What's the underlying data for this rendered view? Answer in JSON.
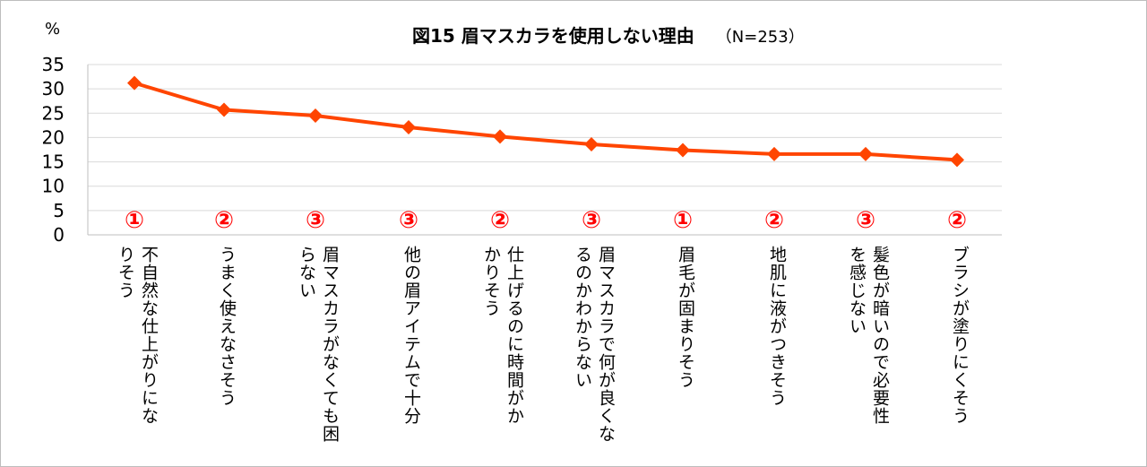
{
  "chart_data": {
    "type": "line",
    "title": "図15 眉マスカラを使用しない理由",
    "n_label": "（N=253）",
    "ylabel": "%",
    "ylim": [
      0,
      35
    ],
    "yticks": [
      0,
      5,
      10,
      15,
      20,
      25,
      30,
      35
    ],
    "grid": true,
    "categories": [
      [
        "不自然な仕上がりにな",
        "りそう"
      ],
      [
        "うまく使えなさそう"
      ],
      [
        "眉マスカラがなくても困",
        "らない"
      ],
      [
        "他の眉アイテムで十分"
      ],
      [
        "仕上げるのに時間がか",
        "かりそう"
      ],
      [
        "眉マスカラで何が良くな",
        "るのかわからない"
      ],
      [
        "眉毛が固まりそう"
      ],
      [
        "地肌に液がつきそう"
      ],
      [
        "髪色が暗いので必要性",
        "を感じない"
      ],
      [
        "ブラシが塗りにくそう"
      ]
    ],
    "values": [
      31.2,
      25.7,
      24.5,
      22.1,
      20.2,
      18.6,
      17.4,
      16.6,
      16.6,
      15.4
    ],
    "annotations": [
      "①",
      "②",
      "③",
      "③",
      "②",
      "③",
      "①",
      "②",
      "③",
      "②"
    ],
    "line_color": "#ff4500",
    "annotation_color": "#ff0000"
  }
}
